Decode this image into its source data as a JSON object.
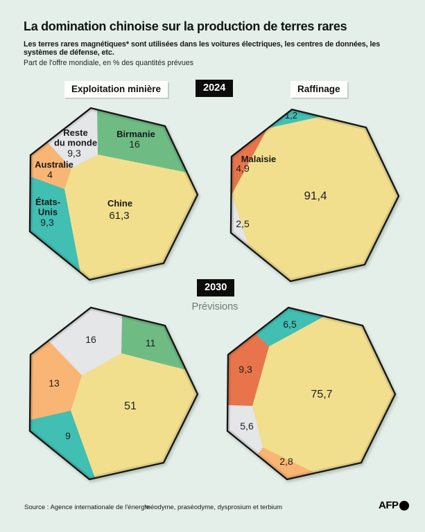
{
  "header": {
    "title": "La domination chinoise sur la production de terres rares",
    "subtitle": "Les terres rares magnétiques* sont utilisées dans les voitures électriques, les centres de données, les systèmes de défense, etc.",
    "unit_note": "Part de l'offre mondiale, en % des quantités prévues"
  },
  "labels": {
    "column_left": "Exploitation minière",
    "column_right": "Raffinage",
    "year_top": "2024",
    "year_bottom": "2030",
    "forecast": "Prévisions"
  },
  "footer": {
    "source": "Source : Agence internationale de l'énergie",
    "note": "*néodyme, praséodyme, dysprosium et terbium",
    "brand": "AFP"
  },
  "colors": {
    "background": "#e4efe9",
    "yellow": "#f2df8e",
    "green": "#6ebc84",
    "grey": "#e4e6e8",
    "orange": "#f9b573",
    "teal": "#41bfb3",
    "rust": "#e8744b",
    "outline": "#161616",
    "text": "#161917"
  },
  "chart_data": [
    {
      "id": "mining-2024",
      "type": "polygon-pie",
      "title": "Exploitation minière 2024",
      "unit": "% de l'offre mondiale",
      "slices": [
        {
          "country": "Chine",
          "label_lines": [
            "Chine"
          ],
          "value": 61.3,
          "value_display": "61,3",
          "color": "yellow"
        },
        {
          "country": "Birmanie",
          "label_lines": [
            "Birmanie"
          ],
          "value": 16,
          "value_display": "16",
          "color": "green"
        },
        {
          "country": "Reste du monde",
          "label_lines": [
            "Reste",
            "du monde"
          ],
          "value": 9.3,
          "value_display": "9,3",
          "color": "grey"
        },
        {
          "country": "Australie",
          "label_lines": [
            "Australie"
          ],
          "value": 4,
          "value_display": "4",
          "color": "orange"
        },
        {
          "country": "États-Unis",
          "label_lines": [
            "États-",
            "Unis"
          ],
          "value": 9.3,
          "value_display": "9,3",
          "color": "teal"
        }
      ]
    },
    {
      "id": "refining-2024",
      "type": "polygon-pie",
      "title": "Raffinage 2024",
      "unit": "% de l'offre mondiale",
      "slices": [
        {
          "country": "Chine",
          "label_lines": [],
          "value": 91.4,
          "value_display": "91,4",
          "color": "yellow"
        },
        {
          "country": "",
          "label_lines": [],
          "value": 1.2,
          "value_display": "1,2",
          "color": "teal"
        },
        {
          "country": "Malaisie",
          "label_lines": [
            "Malaisie"
          ],
          "value": 4.9,
          "value_display": "4,9",
          "color": "rust"
        },
        {
          "country": "",
          "label_lines": [],
          "value": 2.5,
          "value_display": "2,5",
          "color": "grey"
        }
      ]
    },
    {
      "id": "mining-2030",
      "type": "polygon-pie",
      "title": "Exploitation minière 2030 (prévisions)",
      "unit": "% de l'offre mondiale",
      "slices": [
        {
          "country": "",
          "label_lines": [],
          "value": 51,
          "value_display": "51",
          "color": "yellow"
        },
        {
          "country": "",
          "label_lines": [],
          "value": 11,
          "value_display": "11",
          "color": "green"
        },
        {
          "country": "",
          "label_lines": [],
          "value": 16,
          "value_display": "16",
          "color": "grey"
        },
        {
          "country": "",
          "label_lines": [],
          "value": 13,
          "value_display": "13",
          "color": "orange"
        },
        {
          "country": "",
          "label_lines": [],
          "value": 9,
          "value_display": "9",
          "color": "teal"
        }
      ]
    },
    {
      "id": "refining-2030",
      "type": "polygon-pie",
      "title": "Raffinage 2030 (prévisions)",
      "unit": "% de l'offre mondiale",
      "slices": [
        {
          "country": "",
          "label_lines": [],
          "value": 75.7,
          "value_display": "75,7",
          "color": "yellow"
        },
        {
          "country": "",
          "label_lines": [],
          "value": 6.5,
          "value_display": "6,5",
          "color": "teal"
        },
        {
          "country": "",
          "label_lines": [],
          "value": 9.3,
          "value_display": "9,3",
          "color": "rust"
        },
        {
          "country": "",
          "label_lines": [],
          "value": 5.6,
          "value_display": "5,6",
          "color": "grey"
        },
        {
          "country": "",
          "label_lines": [],
          "value": 2.8,
          "value_display": "2,8",
          "color": "orange"
        }
      ]
    }
  ]
}
